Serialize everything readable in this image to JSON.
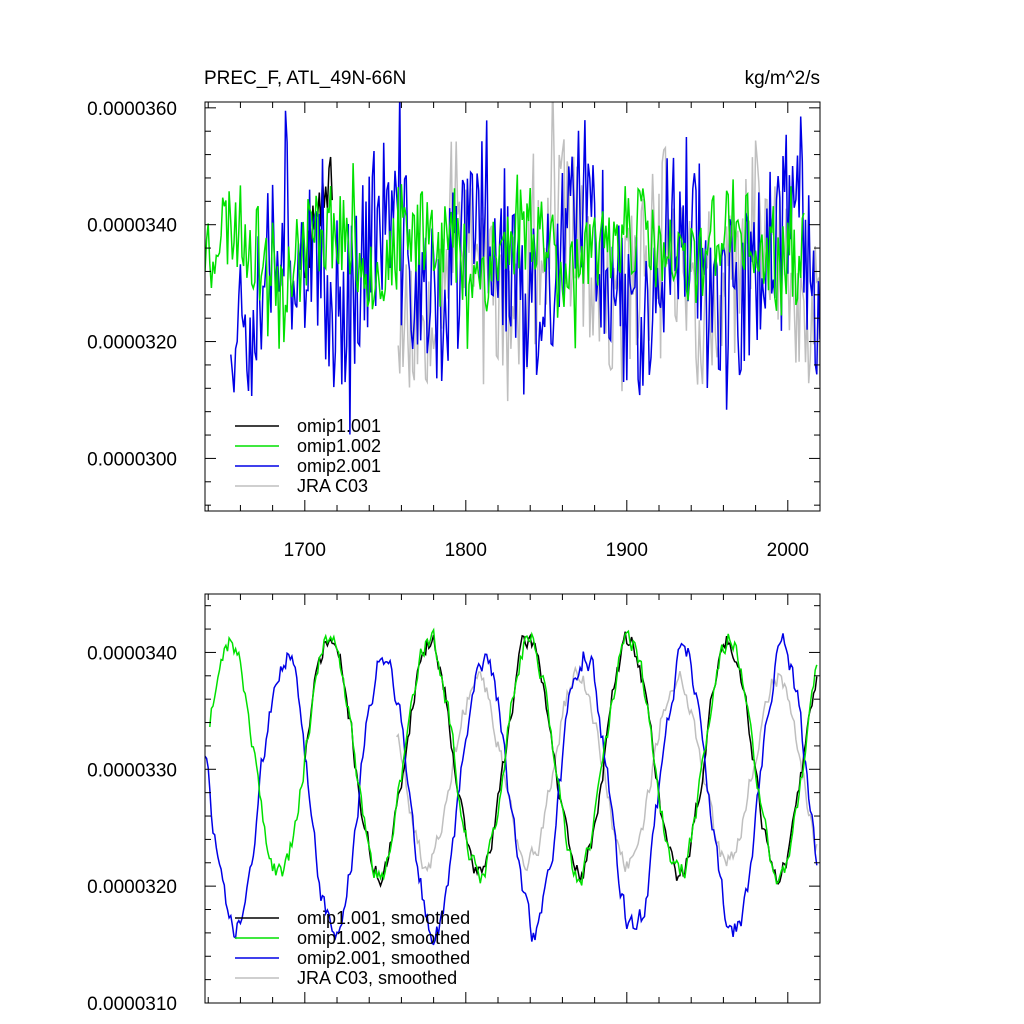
{
  "figure": {
    "title_left": "PREC_F, ATL_49N-66N",
    "title_right": "kg/m^2/s"
  },
  "colors": {
    "omip1_001": "#000000",
    "omip1_002": "#00e000",
    "omip2_001": "#0000e6",
    "jra_c03": "#bfbfbf"
  },
  "chart_data": [
    {
      "type": "line",
      "panel": "top",
      "title": "PREC_F, ATL_49N-66N",
      "units": "kg/m^2/s",
      "xlim": [
        1638,
        2020
      ],
      "ylim": [
        2.91e-05,
        3.61e-05
      ],
      "xticks": [
        1700,
        1800,
        1900,
        2000
      ],
      "xtick_labels": [
        "1700",
        "1800",
        "1900",
        "2000"
      ],
      "yticks": [
        3e-05,
        3.2e-05,
        3.4e-05,
        3.6e-05
      ],
      "ytick_labels": [
        "0.0000300",
        "0.0000320",
        "0.0000340",
        "0.0000360"
      ],
      "legend_position": "bottom-left",
      "series": [
        {
          "name": "omip1.001",
          "color_key": "omip1_001",
          "x_range": [
            1700,
            1717
          ],
          "mean": 3.34e-05,
          "amp": 1.2e-06,
          "noise": 6e-07,
          "seed": 11,
          "period": 62,
          "phase": 1700
        },
        {
          "name": "omip1.002",
          "color_key": "omip1_002",
          "x_range": [
            1638,
            2010
          ],
          "mean": 3.36e-05,
          "amp": 4e-07,
          "noise": 8e-07,
          "seed": 23,
          "period": 62,
          "phase": 1700
        },
        {
          "name": "omip2.001",
          "color_key": "omip2_001",
          "x_range": [
            1654,
            2020
          ],
          "mean": 3.33e-05,
          "amp": 8e-07,
          "noise": 1.5e-06,
          "seed": 37,
          "period": 62,
          "phase": 1672
        },
        {
          "name": "JRA C03",
          "color_key": "jra_c03",
          "x_range": [
            1758,
            2020
          ],
          "mean": 3.32e-05,
          "amp": 9e-07,
          "noise": 1.4e-06,
          "seed": 53,
          "period": 62,
          "phase": 1720
        }
      ]
    },
    {
      "type": "line",
      "panel": "bottom",
      "xlim": [
        1638,
        2020
      ],
      "ylim": [
        3.1e-05,
        3.45e-05
      ],
      "xticks": [
        1700,
        1800,
        1900,
        2000
      ],
      "xtick_labels": [],
      "yticks": [
        3.1e-05,
        3.2e-05,
        3.3e-05,
        3.4e-05
      ],
      "ytick_labels": [
        "0.0000310",
        "0.0000320",
        "0.0000330",
        "0.0000340"
      ],
      "legend_position": "bottom-left",
      "series": [
        {
          "name": "omip1.001, smoothed",
          "color_key": "omip1_001",
          "x_range": [
            1700,
            2018
          ],
          "mean": 3.31e-05,
          "amp": 1e-06,
          "noise": 2e-07,
          "seed": 71,
          "period": 62,
          "phase": 1700
        },
        {
          "name": "omip1.002, smoothed",
          "color_key": "omip1_002",
          "x_range": [
            1641,
            2018
          ],
          "mean": 3.31e-05,
          "amp": 1e-06,
          "noise": 2e-07,
          "seed": 72,
          "period": 62,
          "phase": 1700
        },
        {
          "name": "omip2.001, smoothed",
          "color_key": "omip2_001",
          "x_range": [
            1638,
            2018
          ],
          "mean": 3.28e-05,
          "amp": 1.2e-06,
          "noise": 2.5e-07,
          "seed": 73,
          "period": 62,
          "phase": 1672
        },
        {
          "name": "JRA C03, smoothed",
          "color_key": "jra_c03",
          "x_range": [
            1757,
            2018
          ],
          "mean": 3.3e-05,
          "amp": 8e-07,
          "noise": 2e-07,
          "seed": 74,
          "period": 62,
          "phase": 1730
        }
      ]
    }
  ]
}
